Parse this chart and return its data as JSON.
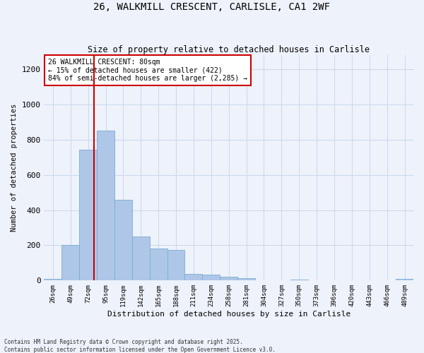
{
  "title1": "26, WALKMILL CRESCENT, CARLISLE, CA1 2WF",
  "title2": "Size of property relative to detached houses in Carlisle",
  "xlabel": "Distribution of detached houses by size in Carlisle",
  "ylabel": "Number of detached properties",
  "bins": [
    "26sqm",
    "49sqm",
    "72sqm",
    "95sqm",
    "119sqm",
    "142sqm",
    "165sqm",
    "188sqm",
    "211sqm",
    "234sqm",
    "258sqm",
    "281sqm",
    "304sqm",
    "327sqm",
    "350sqm",
    "373sqm",
    "396sqm",
    "420sqm",
    "443sqm",
    "466sqm",
    "489sqm"
  ],
  "values": [
    10,
    200,
    745,
    850,
    460,
    248,
    180,
    175,
    38,
    35,
    20,
    12,
    0,
    0,
    5,
    0,
    0,
    0,
    0,
    0,
    10
  ],
  "bar_color": "#aec6e8",
  "bar_edge_color": "#7aaed0",
  "grid_color": "#c8d8ee",
  "background_color": "#eef2fa",
  "annotation_line1": "26 WALKMILL CRESCENT: 80sqm",
  "annotation_line2": "← 15% of detached houses are smaller (422)",
  "annotation_line3": "84% of semi-detached houses are larger (2,285) →",
  "annotation_box_color": "#ffffff",
  "annotation_box_edge": "#cc0000",
  "vline_color": "#cc0000",
  "vline_x": 2.35,
  "ylim": [
    0,
    1280
  ],
  "yticks": [
    0,
    200,
    400,
    600,
    800,
    1000,
    1200
  ],
  "footnote1": "Contains HM Land Registry data © Crown copyright and database right 2025.",
  "footnote2": "Contains public sector information licensed under the Open Government Licence v3.0."
}
